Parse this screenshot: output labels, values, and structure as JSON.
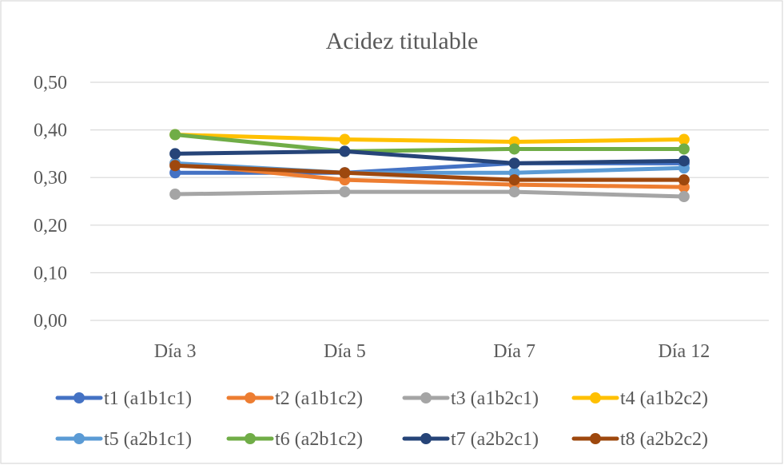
{
  "chart_data": {
    "type": "line",
    "title": "Acidez titulable",
    "xlabel": "",
    "ylabel": "",
    "categories": [
      "Día 3",
      "Día 5",
      "Día 7",
      "Día 12"
    ],
    "ylim": [
      0,
      0.5
    ],
    "yticks": [
      "0,00",
      "0,10",
      "0,20",
      "0,30",
      "0,40",
      "0,50"
    ],
    "ytick_values": [
      0,
      0.1,
      0.2,
      0.3,
      0.4,
      0.5
    ],
    "grid": true,
    "legend_position": "bottom",
    "series": [
      {
        "name": "t1 (a1b1c1)",
        "color": "#4472C4",
        "values": [
          0.31,
          0.31,
          0.33,
          0.33
        ]
      },
      {
        "name": "t2 (a1b1c2)",
        "color": "#ED7D31",
        "values": [
          0.33,
          0.295,
          0.285,
          0.28
        ]
      },
      {
        "name": "t3 (a1b2c1)",
        "color": "#A5A5A5",
        "values": [
          0.265,
          0.27,
          0.27,
          0.26
        ]
      },
      {
        "name": "t4 (a1b2c2)",
        "color": "#FFC000",
        "values": [
          0.39,
          0.38,
          0.375,
          0.38
        ]
      },
      {
        "name": "t5 (a2b1c1)",
        "color": "#5B9BD5",
        "values": [
          0.33,
          0.31,
          0.31,
          0.32
        ]
      },
      {
        "name": "t6 (a2b1c2)",
        "color": "#70AD47",
        "values": [
          0.39,
          0.355,
          0.36,
          0.36
        ]
      },
      {
        "name": "t7 (a2b2c1)",
        "color": "#264478",
        "values": [
          0.35,
          0.355,
          0.33,
          0.335
        ]
      },
      {
        "name": "t8 (a2b2c2)",
        "color": "#9E480E",
        "values": [
          0.325,
          0.31,
          0.295,
          0.295
        ]
      }
    ]
  }
}
